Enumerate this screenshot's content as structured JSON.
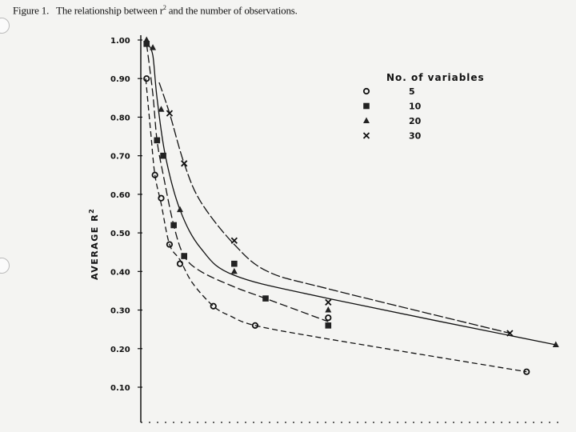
{
  "caption": {
    "prefix": "Figure 1.",
    "text_before_sup": "The relationship between r",
    "sup": "2",
    "text_after_sup": " and the number of observations."
  },
  "chart_data": {
    "type": "scatter",
    "title": "",
    "ylabel_main": "AVERAGE  R",
    "ylabel_sup": "2",
    "xlabel": "",
    "ylim": [
      0.0,
      1.05
    ],
    "xlim": [
      0,
      100
    ],
    "y_ticks": [
      "1.00",
      "0.90",
      "0.80",
      "0.70",
      "0.60",
      "0.50",
      "0.40",
      "0.30",
      "0.20",
      "0.10"
    ],
    "y_tick_values": [
      1.0,
      0.9,
      0.8,
      0.7,
      0.6,
      0.5,
      0.4,
      0.3,
      0.2,
      0.1
    ],
    "legend": {
      "title": "No. of variables",
      "placement": "top-right"
    },
    "series": [
      {
        "name": "5",
        "marker": "circle",
        "points": [
          [
            1.0,
            0.9
          ],
          [
            3.0,
            0.65
          ],
          [
            4.5,
            0.59
          ],
          [
            6.5,
            0.47
          ],
          [
            9.0,
            0.42
          ],
          [
            17.0,
            0.31
          ],
          [
            27.0,
            0.26
          ],
          [
            44.5,
            0.28
          ],
          [
            92.0,
            0.14
          ]
        ],
        "curve": [
          [
            0.8,
            0.9
          ],
          [
            2.0,
            0.76
          ],
          [
            3.0,
            0.65
          ],
          [
            4.5,
            0.575
          ],
          [
            6.5,
            0.47
          ],
          [
            9.0,
            0.43
          ],
          [
            12.0,
            0.37
          ],
          [
            17.0,
            0.31
          ],
          [
            21.0,
            0.285
          ],
          [
            27.0,
            0.26
          ],
          [
            44.5,
            0.225
          ],
          [
            92.0,
            0.14
          ]
        ]
      },
      {
        "name": "10",
        "marker": "square",
        "points": [
          [
            1.0,
            0.99
          ],
          [
            3.5,
            0.74
          ],
          [
            5.0,
            0.7
          ],
          [
            7.5,
            0.52
          ],
          [
            10.0,
            0.44
          ],
          [
            22.0,
            0.42
          ],
          [
            29.5,
            0.33
          ],
          [
            44.5,
            0.26
          ]
        ],
        "curve": [
          [
            1.0,
            0.99
          ],
          [
            2.5,
            0.86
          ],
          [
            3.5,
            0.74
          ],
          [
            5.0,
            0.65
          ],
          [
            7.5,
            0.52
          ],
          [
            10.0,
            0.44
          ],
          [
            14.0,
            0.4
          ],
          [
            22.0,
            0.36
          ],
          [
            29.5,
            0.33
          ],
          [
            44.5,
            0.27
          ]
        ]
      },
      {
        "name": "20",
        "marker": "triangle",
        "points": [
          [
            1.0,
            1.0
          ],
          [
            2.5,
            0.98
          ],
          [
            4.5,
            0.82
          ],
          [
            9.0,
            0.56
          ],
          [
            22.0,
            0.4
          ],
          [
            44.5,
            0.3
          ],
          [
            99.0,
            0.21
          ]
        ],
        "curve": [
          [
            1.3,
            0.99
          ],
          [
            2.5,
            0.96
          ],
          [
            3.5,
            0.85
          ],
          [
            5.5,
            0.7
          ],
          [
            9.0,
            0.56
          ],
          [
            14.0,
            0.46
          ],
          [
            22.0,
            0.39
          ],
          [
            44.5,
            0.33
          ],
          [
            99.0,
            0.21
          ]
        ]
      },
      {
        "name": "30",
        "marker": "x",
        "points": [
          [
            6.5,
            0.81
          ],
          [
            10.0,
            0.68
          ],
          [
            22.0,
            0.48
          ],
          [
            44.5,
            0.32
          ],
          [
            88.0,
            0.24
          ]
        ],
        "curve": [
          [
            4.0,
            0.89
          ],
          [
            6.5,
            0.81
          ],
          [
            10.0,
            0.68
          ],
          [
            14.0,
            0.58
          ],
          [
            22.0,
            0.47
          ],
          [
            30.0,
            0.4
          ],
          [
            44.5,
            0.355
          ],
          [
            88.0,
            0.24
          ]
        ]
      }
    ]
  }
}
